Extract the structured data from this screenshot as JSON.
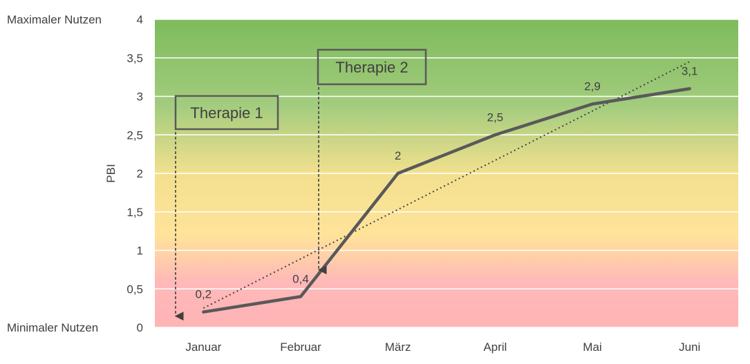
{
  "chart_data": {
    "type": "line",
    "ylabel": "PBI",
    "ylim": [
      0,
      4
    ],
    "yticks": [
      "0",
      "0,5",
      "1",
      "1,5",
      "2",
      "2,5",
      "3",
      "3,5",
      "4"
    ],
    "categories": [
      "Januar",
      "Februar",
      "März",
      "April",
      "Mai",
      "Juni"
    ],
    "series": [
      {
        "values": [
          0.2,
          0.4,
          2,
          2.5,
          2.9,
          3.1
        ],
        "data_labels": [
          "0,2",
          "0,4",
          "2",
          "2,5",
          "2,9",
          "3,1"
        ]
      }
    ],
    "trendline": {
      "style": "dotted",
      "start": 0.25,
      "end": 3.45
    },
    "annotations": [
      {
        "text": "Therapie 1",
        "arrow_category_index": 0,
        "arrow_target": 0.2
      },
      {
        "text": "Therapie 2",
        "arrow_category_index": 1,
        "arrow_target": 0.8
      }
    ],
    "background": "gradient red (low) → yellow → green (high)",
    "grid": true
  },
  "labels": {
    "max": "Maximaler Nutzen",
    "min": "Minimaler Nutzen"
  },
  "colors": {
    "line": "#595959",
    "low": "#ffb6b9",
    "mid": "#fde69a",
    "high": "#7dbb5c",
    "grid": "#ffffff"
  }
}
